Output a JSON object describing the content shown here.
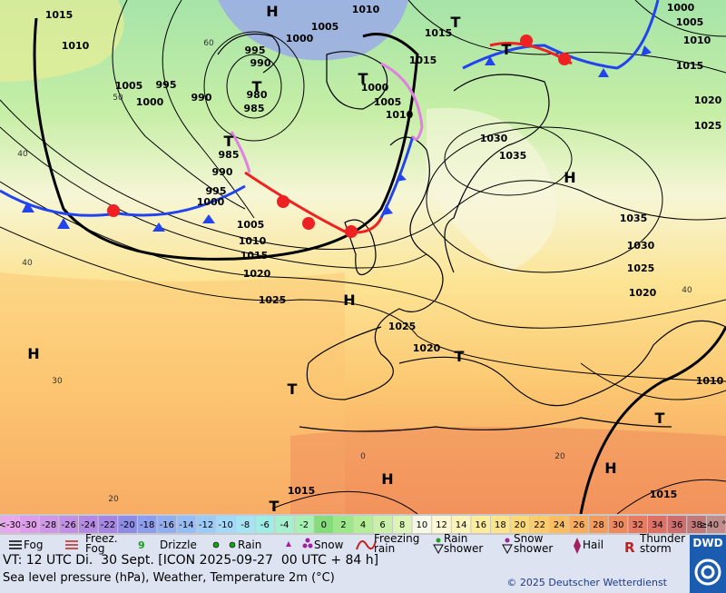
{
  "map": {
    "pressure_labels": [
      "1015",
      "1010",
      "1005",
      "995",
      "1000",
      "990",
      "995",
      "990",
      "980",
      "985",
      "1000",
      "1005",
      "1010",
      "1015",
      "1015",
      "1000",
      "1005",
      "1010",
      "985",
      "990",
      "995",
      "1000",
      "1005",
      "1010",
      "1015",
      "1020",
      "1025",
      "1025",
      "1020",
      "1030",
      "1035",
      "1035",
      "1030",
      "1025",
      "1020",
      "1020",
      "1025",
      "1000",
      "1005",
      "1010",
      "1015",
      "1010",
      "1015",
      "1015"
    ],
    "centers": [
      "H",
      "T",
      "T",
      "T",
      "T",
      "T",
      "H",
      "H",
      "H",
      "T",
      "T",
      "H",
      "H",
      "T",
      "T"
    ],
    "grid_labels": [
      "60",
      "50",
      "40",
      "40",
      "30",
      "20",
      "0",
      "20",
      "40"
    ]
  },
  "temperature_scale": [
    {
      "label": "<-30",
      "color": "#e8a8ec"
    },
    {
      "label": "-30",
      "color": "#dc9ee8"
    },
    {
      "label": "-28",
      "color": "#cf98e6"
    },
    {
      "label": "-26",
      "color": "#c290e4"
    },
    {
      "label": "-24",
      "color": "#b48ae2"
    },
    {
      "label": "-22",
      "color": "#a686e2"
    },
    {
      "label": "-20",
      "color": "#8c8ce6"
    },
    {
      "label": "-18",
      "color": "#8e9eec"
    },
    {
      "label": "-16",
      "color": "#92aef0"
    },
    {
      "label": "-14",
      "color": "#96bef4"
    },
    {
      "label": "-12",
      "color": "#9ecbf6"
    },
    {
      "label": "-10",
      "color": "#a6d8f8"
    },
    {
      "label": "-8",
      "color": "#a6e4f4"
    },
    {
      "label": "-6",
      "color": "#a2ece6"
    },
    {
      "label": "-4",
      "color": "#a6f0d0"
    },
    {
      "label": "-2",
      "color": "#a8f0b4"
    },
    {
      "label": "0",
      "color": "#84dc7a"
    },
    {
      "label": "2",
      "color": "#9ee68a"
    },
    {
      "label": "4",
      "color": "#b4ec98"
    },
    {
      "label": "6",
      "color": "#c8f0a8"
    },
    {
      "label": "8",
      "color": "#dcf4b8"
    },
    {
      "label": "10",
      "color": "#f8f8e8"
    },
    {
      "label": "12",
      "color": "#fcf8d4"
    },
    {
      "label": "14",
      "color": "#fcf4b8"
    },
    {
      "label": "16",
      "color": "#fcec9c"
    },
    {
      "label": "18",
      "color": "#fce488"
    },
    {
      "label": "20",
      "color": "#fcd878"
    },
    {
      "label": "22",
      "color": "#fccc6c"
    },
    {
      "label": "24",
      "color": "#fcbc60"
    },
    {
      "label": "26",
      "color": "#f8ac5c"
    },
    {
      "label": "28",
      "color": "#f49c5c"
    },
    {
      "label": "30",
      "color": "#ee8a5e"
    },
    {
      "label": "32",
      "color": "#e87c60"
    },
    {
      "label": "34",
      "color": "#de7066"
    },
    {
      "label": "36",
      "color": "#cf6e6e"
    },
    {
      "label": "38",
      "color": "#c27a78"
    },
    {
      "label": "≥40 °C",
      "color": "#c08c8c"
    }
  ],
  "legend": [
    "Fog",
    "Freez. Fog",
    "Drizzle",
    "Rain",
    "Snow",
    "Freezing rain",
    "Rain shower",
    "Snow shower",
    "Hail",
    "Thunder storm"
  ],
  "footer": {
    "valid_time": "VT: 12 UTC Di.  30 Sept. [ICON 2025-09-27  00 UTC + 84 h]",
    "description": "Sea level pressure (hPa), Weather, Temperature 2m (°C)",
    "copyright": "© 2025 Deutscher Wetterdienst",
    "logo": "DWD"
  }
}
